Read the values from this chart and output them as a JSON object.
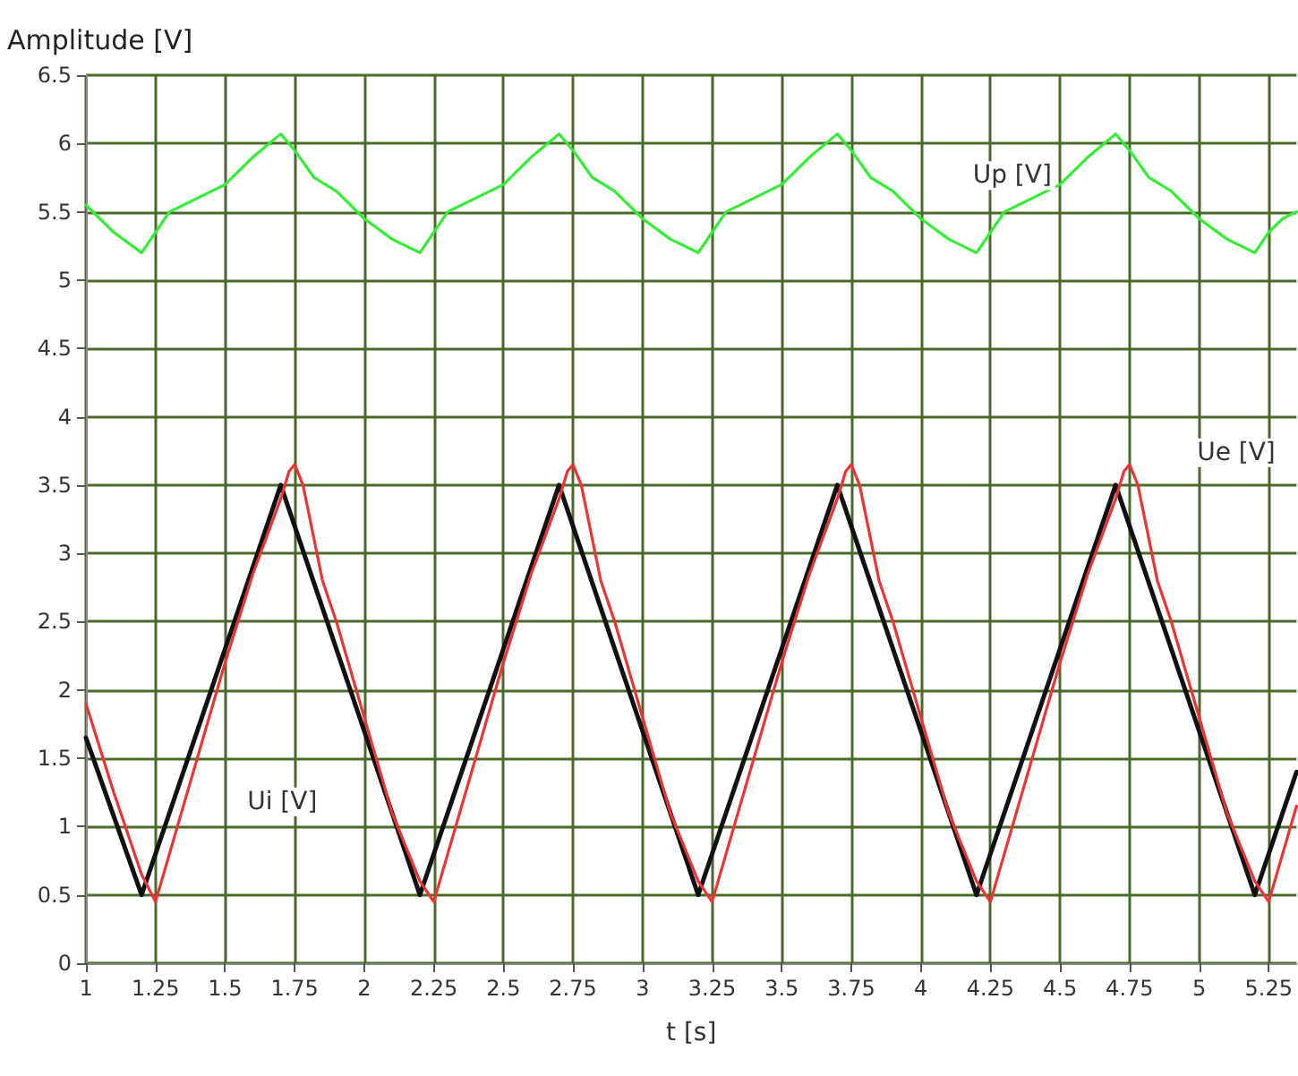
{
  "chart_data": {
    "type": "line",
    "xlabel": "t [s]",
    "ylabel": "Amplitude [V]",
    "xlim": [
      1,
      5.35
    ],
    "xticks": [
      1,
      1.25,
      1.5,
      1.75,
      2,
      2.25,
      2.5,
      2.75,
      3,
      3.25,
      3.5,
      3.75,
      4,
      4.25,
      4.5,
      4.75,
      5,
      5.25
    ],
    "ylim": [
      0,
      6.5
    ],
    "yticks": [
      0,
      0.5,
      1,
      1.5,
      2,
      2.5,
      3,
      3.5,
      4,
      4.5,
      5,
      5.5,
      6,
      6.5
    ],
    "grid": true,
    "marker": "none",
    "line_style": "solid",
    "series": [
      {
        "name": "Up [V]",
        "color": "#33ee33",
        "x": [
          1,
          1.1,
          1.2,
          1.25,
          1.3,
          1.4,
          1.5,
          1.6,
          1.7,
          1.75,
          1.82,
          1.9,
          2,
          2.1,
          2.2,
          2.25,
          2.3,
          2.4,
          2.5,
          2.6,
          2.7,
          2.75,
          2.82,
          2.9,
          3,
          3.1,
          3.2,
          3.25,
          3.3,
          3.4,
          3.5,
          3.6,
          3.7,
          3.75,
          3.82,
          3.9,
          4,
          4.1,
          4.2,
          4.25,
          4.3,
          4.4,
          4.5,
          4.6,
          4.7,
          4.75,
          4.82,
          4.9,
          5,
          5.1,
          5.2,
          5.25,
          5.3,
          5.35
        ],
        "values": [
          5.55,
          5.35,
          5.2,
          5.35,
          5.5,
          5.6,
          5.7,
          5.9,
          6.07,
          5.95,
          5.75,
          5.65,
          5.45,
          5.3,
          5.2,
          5.35,
          5.5,
          5.6,
          5.7,
          5.9,
          6.07,
          5.95,
          5.75,
          5.65,
          5.45,
          5.3,
          5.2,
          5.35,
          5.5,
          5.6,
          5.7,
          5.9,
          6.07,
          5.95,
          5.75,
          5.65,
          5.45,
          5.3,
          5.2,
          5.35,
          5.5,
          5.6,
          5.7,
          5.9,
          6.07,
          5.95,
          5.75,
          5.65,
          5.45,
          5.3,
          5.2,
          5.35,
          5.45,
          5.5
        ]
      },
      {
        "name": "Ue [V]",
        "color": "#ee3333",
        "x": [
          1,
          1.1,
          1.2,
          1.25,
          1.3,
          1.4,
          1.5,
          1.6,
          1.7,
          1.73,
          1.75,
          1.78,
          1.85,
          1.9,
          2,
          2.1,
          2.2,
          2.25,
          2.3,
          2.4,
          2.5,
          2.6,
          2.7,
          2.73,
          2.75,
          2.78,
          2.85,
          2.9,
          3,
          3.1,
          3.2,
          3.25,
          3.3,
          3.4,
          3.5,
          3.6,
          3.7,
          3.73,
          3.75,
          3.78,
          3.85,
          3.9,
          4,
          4.1,
          4.2,
          4.25,
          4.3,
          4.4,
          4.5,
          4.6,
          4.7,
          4.73,
          4.75,
          4.78,
          4.85,
          4.9,
          5,
          5.1,
          5.2,
          5.25,
          5.3,
          5.35
        ],
        "values": [
          1.9,
          1.25,
          0.65,
          0.45,
          0.8,
          1.5,
          2.2,
          2.85,
          3.4,
          3.6,
          3.65,
          3.5,
          2.8,
          2.5,
          1.8,
          1.1,
          0.6,
          0.45,
          0.8,
          1.5,
          2.2,
          2.85,
          3.4,
          3.6,
          3.65,
          3.5,
          2.8,
          2.5,
          1.8,
          1.1,
          0.6,
          0.45,
          0.8,
          1.5,
          2.2,
          2.85,
          3.4,
          3.6,
          3.65,
          3.5,
          2.8,
          2.5,
          1.8,
          1.1,
          0.6,
          0.45,
          0.8,
          1.5,
          2.2,
          2.85,
          3.4,
          3.6,
          3.65,
          3.5,
          2.8,
          2.5,
          1.8,
          1.1,
          0.6,
          0.45,
          0.8,
          1.15
        ]
      },
      {
        "name": "Ui [V]",
        "color": "#111111",
        "x": [
          1,
          1.2,
          1.7,
          2.2,
          2.7,
          3.2,
          3.7,
          4.2,
          4.7,
          5.2,
          5.35
        ],
        "values": [
          1.65,
          0.5,
          3.5,
          0.5,
          3.5,
          0.5,
          3.5,
          0.5,
          3.5,
          0.5,
          1.4
        ]
      }
    ]
  }
}
